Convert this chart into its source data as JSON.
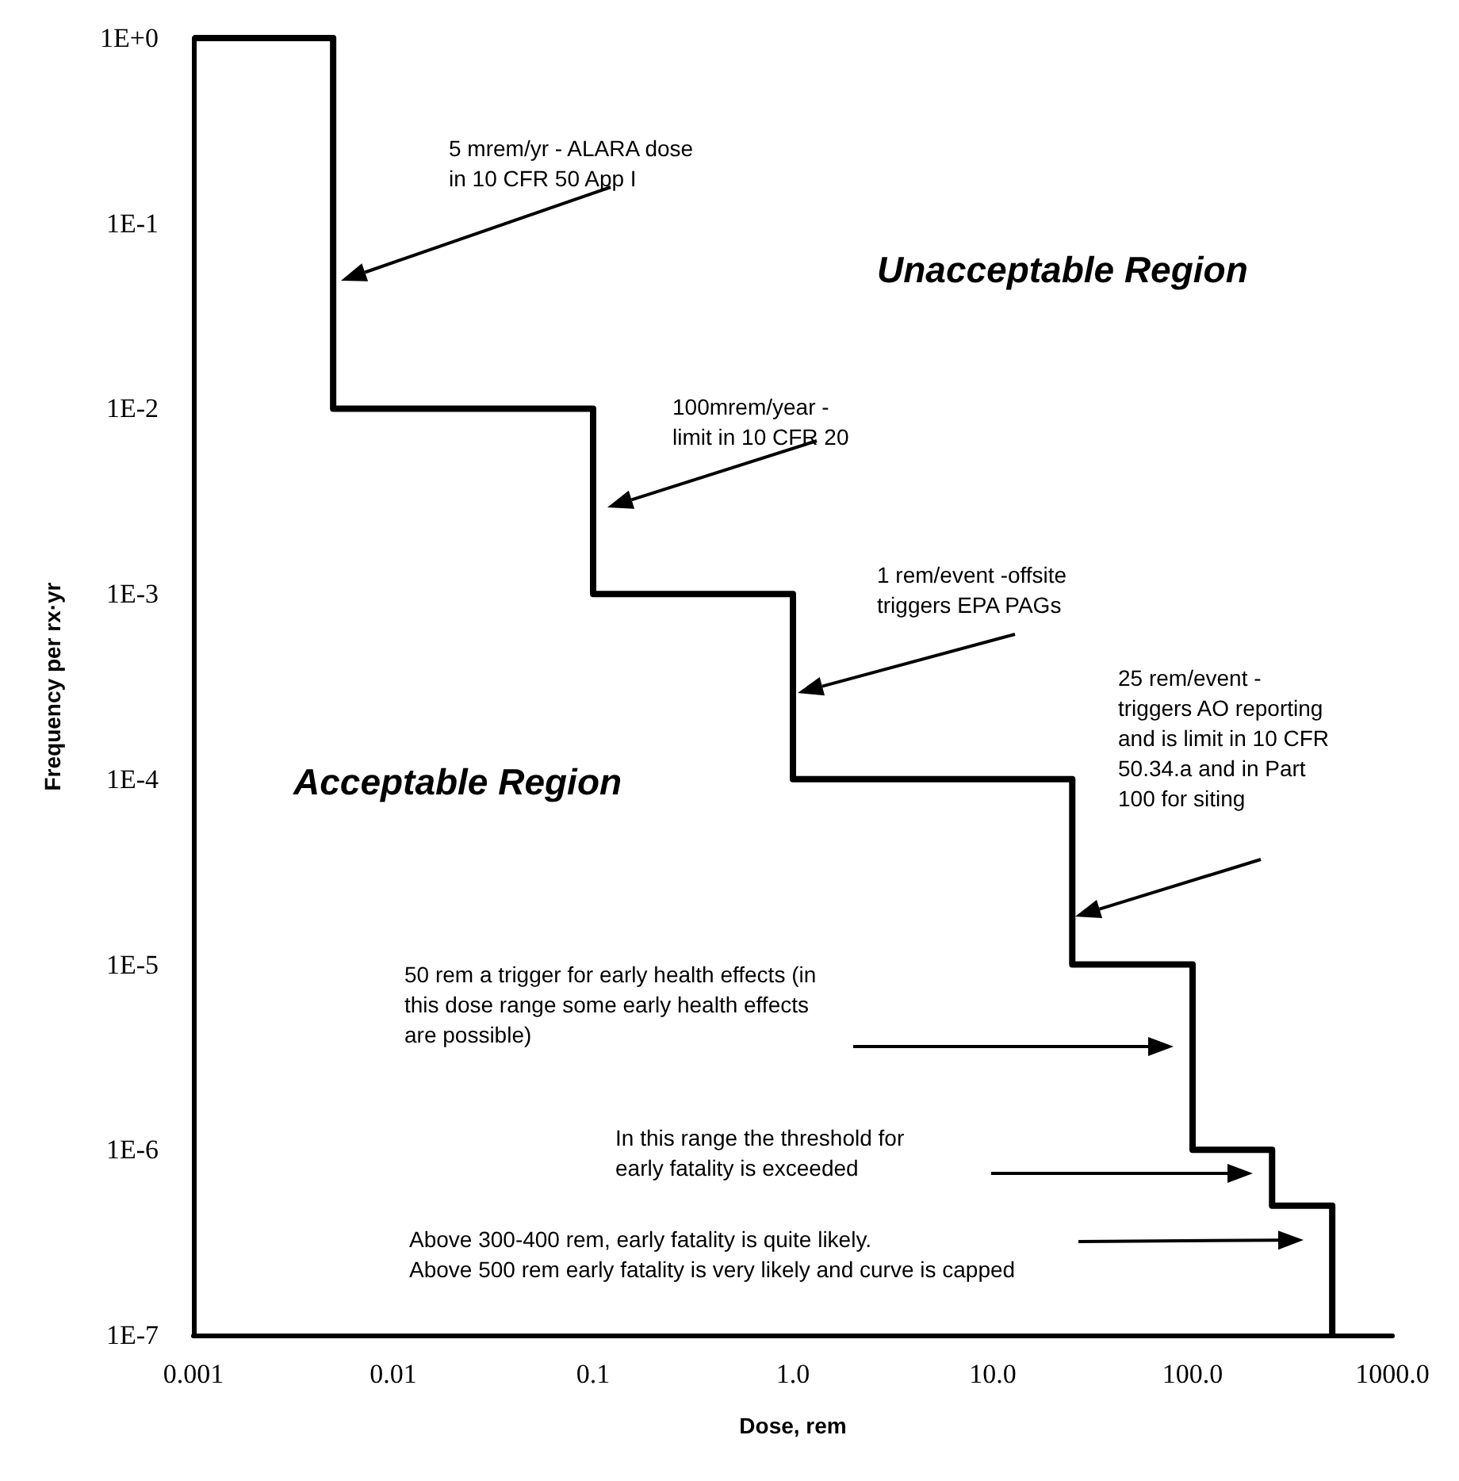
{
  "chart_data": {
    "type": "step",
    "xlabel": "Dose, rem",
    "ylabel": "Frequency per rx·yr",
    "x": [
      0.001,
      0.005,
      0.1,
      1,
      25,
      100,
      250,
      500
    ],
    "series": [
      {
        "color": "#000000",
        "values": [
          1,
          0.01,
          0.001,
          0.0001,
          1e-05,
          1e-06,
          5e-07,
          1e-07
        ]
      }
    ],
    "log": "xy",
    "marker": "none",
    "line_style": "solid",
    "xlim": [
      0.001,
      1000
    ],
    "ylim": [
      1e-07,
      1
    ],
    "xticks": [
      0.001,
      0.01,
      0.1,
      {
        "value": 1,
        "label": "1.0"
      },
      {
        "value": 10,
        "label": "10.0"
      },
      {
        "value": 100,
        "label": "100.0"
      },
      {
        "value": 1000,
        "label": "1000.0"
      }
    ],
    "yticks": [
      {
        "value": 1e-07,
        "label": "1E-7"
      },
      {
        "value": 1e-06,
        "label": "1E-6"
      },
      {
        "value": 1e-05,
        "label": "1E-5"
      },
      {
        "value": 0.0001,
        "label": "1E-4"
      },
      {
        "value": 0.001,
        "label": "1E-3"
      },
      {
        "value": 0.01,
        "label": "1E-2"
      },
      {
        "value": 0.1,
        "label": "1E-1"
      },
      {
        "value": 1,
        "label": "1E+0"
      }
    ],
    "annotations": [
      "5 mrem/yr - ALARA dose\nin 10 CFR 50 App I",
      "100mrem/year -\nlimit in 10 CFR 20",
      "1 rem/event -offsite\ntriggers EPA PAGs",
      "25 rem/event -\ntriggers AO reporting\nand is limit in 10 CFR\n50.34.a and in Part\n100 for siting",
      "50 rem a trigger for early health effects (in\nthis dose range some early health effects\nare possible)",
      "In this range the threshold for\nearly fatality is exceeded",
      "Above 300-400 rem, early fatality is quite likely.\nAbove 500 rem early fatality is very likely and curve is capped",
      "Unacceptable Region",
      "Acceptable Region"
    ]
  }
}
